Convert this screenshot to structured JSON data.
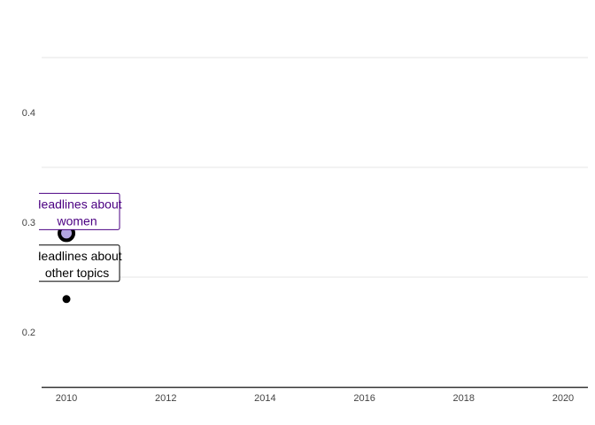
{
  "chart_data": {
    "type": "scatter",
    "title": "",
    "xlabel": "",
    "ylabel": "",
    "xlim": [
      2009.5,
      2020.5
    ],
    "ylim": [
      0.15,
      0.5
    ],
    "x_ticks": [
      2010,
      2012,
      2014,
      2016,
      2018,
      2020
    ],
    "y_ticks": [
      0.2,
      0.3,
      0.4
    ],
    "y_gridlines": [
      0.25,
      0.35,
      0.45
    ],
    "grid": "horizontal",
    "legend": "none",
    "series": [
      {
        "label_lines": [
          "Headlines about",
          "women"
        ],
        "color": "#4b0082",
        "fill": "#b3a6e0",
        "x": [
          2010
        ],
        "y": [
          0.29
        ]
      },
      {
        "label_lines": [
          "Headlines about",
          "other topics"
        ],
        "color": "#000000",
        "fill": "#000000",
        "x": [
          2010
        ],
        "y": [
          0.23
        ]
      }
    ]
  }
}
